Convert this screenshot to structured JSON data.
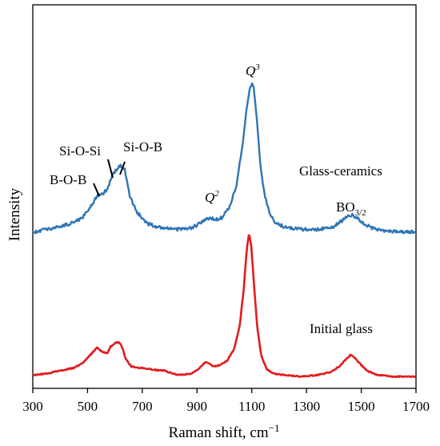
{
  "chart_data": {
    "type": "line",
    "xlabel": "Raman shift, cm",
    "xlabel_superscript": "−1",
    "ylabel": "Intensity",
    "xlim": [
      300,
      1700
    ],
    "xticks": [
      "300",
      "500",
      "700",
      "900",
      "1100",
      "1300",
      "1500",
      "1700"
    ],
    "yticks_shown": false,
    "grid": false,
    "series": [
      {
        "name": "Glass-ceramics",
        "color": "#2e75b6",
        "x": [
          300,
          350,
          400,
          450,
          480,
          510,
          535,
          555,
          575,
          590,
          605,
          620,
          635,
          655,
          680,
          720,
          770,
          830,
          880,
          920,
          945,
          965,
          990,
          1020,
          1045,
          1065,
          1080,
          1092,
          1100,
          1108,
          1118,
          1130,
          1145,
          1165,
          1190,
          1230,
          1290,
          1350,
          1400,
          1430,
          1450,
          1468,
          1485,
          1510,
          1550,
          1600,
          1650,
          1700
        ],
        "y": [
          0.0,
          0.02,
          0.04,
          0.07,
          0.1,
          0.18,
          0.25,
          0.27,
          0.31,
          0.4,
          0.44,
          0.47,
          0.45,
          0.25,
          0.14,
          0.06,
          0.03,
          0.02,
          0.03,
          0.07,
          0.1,
          0.09,
          0.1,
          0.18,
          0.34,
          0.6,
          0.85,
          1.0,
          1.04,
          1.0,
          0.8,
          0.5,
          0.28,
          0.13,
          0.06,
          0.03,
          0.02,
          0.02,
          0.04,
          0.08,
          0.11,
          0.12,
          0.1,
          0.06,
          0.02,
          0.01,
          0.0,
          0.0
        ]
      },
      {
        "name": "Initial glass",
        "color": "#e41a1c",
        "x": [
          300,
          350,
          400,
          450,
          480,
          510,
          535,
          555,
          572,
          585,
          600,
          615,
          625,
          640,
          660,
          690,
          730,
          780,
          830,
          880,
          910,
          930,
          945,
          960,
          985,
          1010,
          1035,
          1055,
          1070,
          1082,
          1090,
          1098,
          1108,
          1120,
          1135,
          1155,
          1180,
          1220,
          1280,
          1340,
          1390,
          1420,
          1445,
          1462,
          1475,
          1495,
          1520,
          1560,
          1620,
          1700
        ],
        "y": [
          0.02,
          0.03,
          0.05,
          0.07,
          0.1,
          0.16,
          0.21,
          0.18,
          0.17,
          0.22,
          0.24,
          0.25,
          0.22,
          0.13,
          0.08,
          0.07,
          0.06,
          0.05,
          0.02,
          0.03,
          0.07,
          0.11,
          0.1,
          0.08,
          0.09,
          0.12,
          0.2,
          0.35,
          0.6,
          0.9,
          1.0,
          0.92,
          0.65,
          0.35,
          0.15,
          0.06,
          0.03,
          0.02,
          0.01,
          0.02,
          0.04,
          0.08,
          0.13,
          0.16,
          0.14,
          0.1,
          0.05,
          0.02,
          0.01,
          0.01
        ]
      }
    ],
    "annotations": [
      {
        "text": "B-O-B",
        "x": 540,
        "leader": true
      },
      {
        "text": "Si-O-Si",
        "x": 590,
        "leader": true
      },
      {
        "text": "Si-O-B",
        "x": 630,
        "leader": true
      },
      {
        "text": "Q",
        "sup": "2",
        "x": 955
      },
      {
        "text": "Q",
        "sup": "3",
        "x": 1100
      },
      {
        "text": "Glass-ceramics",
        "kind": "series-label"
      },
      {
        "text": "BO",
        "sub": "3/2",
        "x": 1470
      },
      {
        "text": "Initial glass",
        "kind": "series-label"
      }
    ]
  }
}
